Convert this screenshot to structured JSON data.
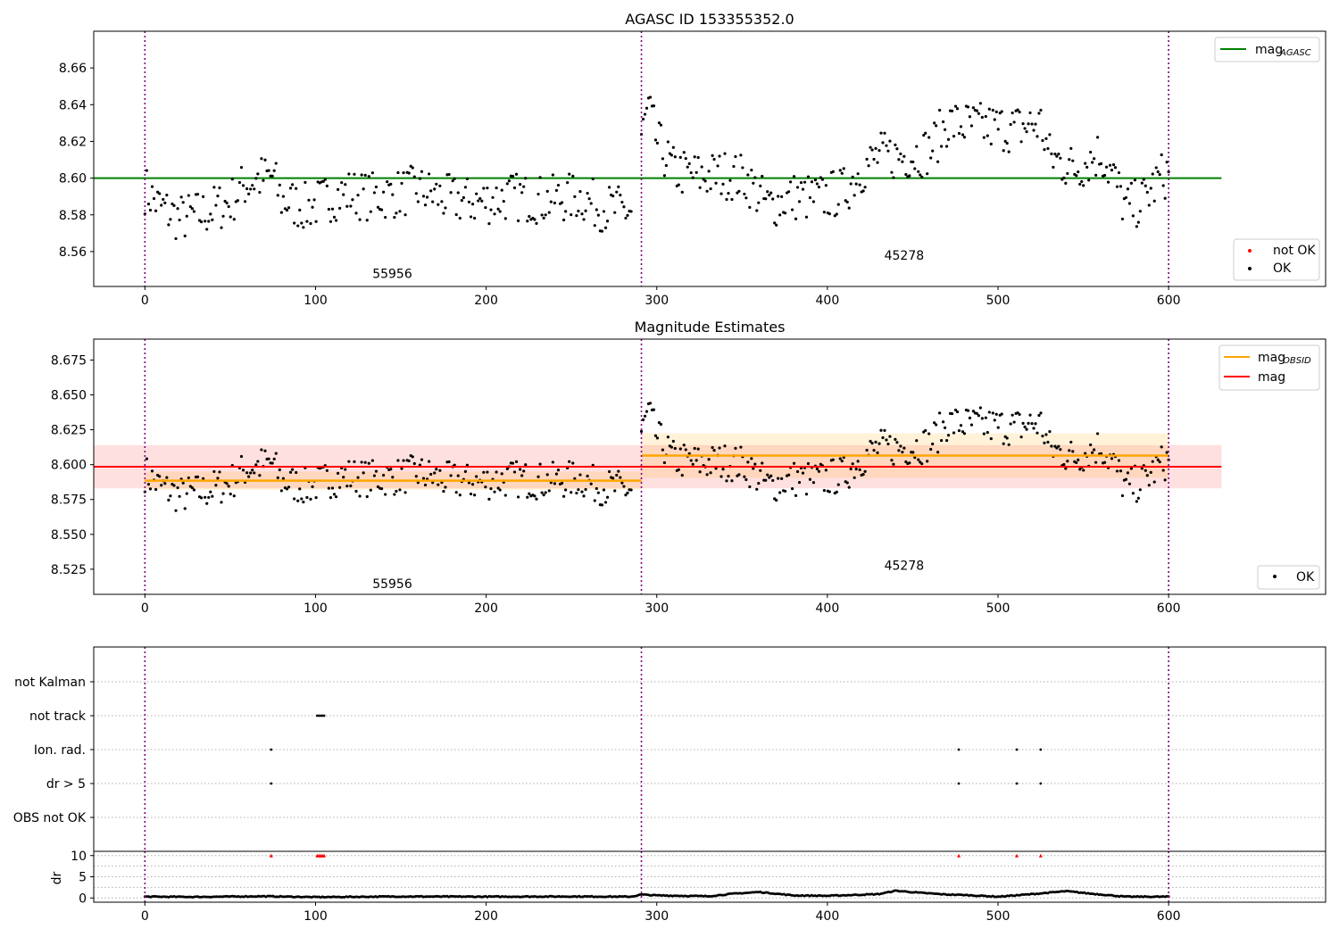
{
  "chart_data": [
    {
      "id": "agasc",
      "type": "scatter",
      "title": "AGASC ID 153355352.0",
      "xlim": [
        -30,
        692
      ],
      "ylim": [
        8.541,
        8.68
      ],
      "xticks": [
        0,
        100,
        200,
        300,
        400,
        500,
        600
      ],
      "yticks": [
        8.56,
        8.58,
        8.6,
        8.62,
        8.64,
        8.66
      ],
      "ytick_decimals": 2,
      "obsid_boundaries": [
        0,
        291,
        600
      ],
      "obsid_labels": [
        {
          "text": "55956",
          "x": 145,
          "y": 8.5455
        },
        {
          "text": "45278",
          "x": 445,
          "y": 8.5555
        }
      ],
      "hlines": [
        {
          "label_main": "mag",
          "label_sub": "AGASC",
          "y": 8.6,
          "x_range": [
            -30,
            631
          ],
          "color": "#008000"
        }
      ],
      "legend_top": [
        {
          "label_main": "mag",
          "label_sub": "AGASC",
          "color": "#008000"
        }
      ],
      "legend_bottom": [
        {
          "label": "not OK",
          "color": "#ff0000"
        },
        {
          "label": "OK",
          "color": "#000000"
        }
      ],
      "legend_top_placement": "upper-right",
      "legend_bottom_placement": "lower-right",
      "series_ref": "mag_points"
    },
    {
      "id": "estimates",
      "type": "scatter",
      "title": "Magnitude Estimates",
      "xlim": [
        -30,
        692
      ],
      "ylim": [
        8.507,
        8.69
      ],
      "xticks": [
        0,
        100,
        200,
        300,
        400,
        500,
        600
      ],
      "yticks": [
        8.525,
        8.55,
        8.575,
        8.6,
        8.625,
        8.65,
        8.675
      ],
      "ytick_decimals": 3,
      "obsid_boundaries": [
        0,
        291,
        600
      ],
      "obsid_labels": [
        {
          "text": "55956",
          "x": 145,
          "y": 8.5115
        },
        {
          "text": "45278",
          "x": 445,
          "y": 8.5245
        }
      ],
      "bands": [
        {
          "name": "mag",
          "y": 8.5985,
          "low": 8.583,
          "high": 8.614,
          "x_range": [
            -30,
            631
          ],
          "color": "#ff0000"
        },
        {
          "name": "obsid-55956",
          "y": 8.5885,
          "low": 8.582,
          "high": 8.595,
          "x_range": [
            0,
            291
          ],
          "color": "#ffa500"
        },
        {
          "name": "obsid-45278",
          "y": 8.6065,
          "low": 8.5905,
          "high": 8.6225,
          "x_range": [
            291,
            600
          ],
          "color": "#ffa500"
        }
      ],
      "legend_top": [
        {
          "label_main": "mag",
          "label_sub": "OBSID",
          "color": "#ffa500"
        },
        {
          "label_main": "mag",
          "label_sub": "",
          "color": "#ff0000"
        }
      ],
      "legend_bottom": [
        {
          "label": "OK",
          "color": "#000000"
        }
      ],
      "legend_top_placement": "upper-right",
      "legend_bottom_placement": "lower-right",
      "series_ref": "mag_points"
    },
    {
      "id": "flags",
      "type": "scatter",
      "title": "",
      "xlim": [
        -30,
        692
      ],
      "categories": [
        "OBS not OK",
        "dr > 5",
        "Ion. rad.",
        "not track",
        "not Kalman"
      ],
      "obsid_boundaries": [
        0,
        291,
        600
      ],
      "points": [
        {
          "category": "not track",
          "x": [
            101,
            102,
            103,
            104,
            105
          ]
        },
        {
          "category": "Ion. rad.",
          "x": [
            74,
            477,
            511,
            525
          ]
        },
        {
          "category": "dr > 5",
          "x": [
            74,
            477,
            511,
            525
          ]
        }
      ]
    },
    {
      "id": "dr",
      "type": "scatter",
      "title": "",
      "ylabel": "dr",
      "xlim": [
        -30,
        692
      ],
      "ylim": [
        -1,
        11
      ],
      "xticks": [
        0,
        100,
        200,
        300,
        400,
        500,
        600
      ],
      "yticks": [
        0,
        5,
        10
      ],
      "obsid_boundaries": [
        0,
        291,
        600
      ],
      "clipped_marks": {
        "y": 10,
        "x": [
          74,
          101,
          102,
          103,
          104,
          105,
          477,
          511,
          525
        ],
        "color": "#ff0000"
      },
      "series_ref": "dr_points"
    }
  ],
  "mag_points": {
    "segments": [
      {
        "x_range": [
          0,
          285
        ],
        "knots": [
          [
            0,
            8.594
          ],
          [
            8,
            8.585
          ],
          [
            20,
            8.578
          ],
          [
            35,
            8.581
          ],
          [
            50,
            8.587
          ],
          [
            58,
            8.596
          ],
          [
            65,
            8.599
          ],
          [
            75,
            8.601
          ],
          [
            80,
            8.588
          ],
          [
            95,
            8.584
          ],
          [
            110,
            8.59
          ],
          [
            120,
            8.592
          ],
          [
            130,
            8.59
          ],
          [
            145,
            8.591
          ],
          [
            160,
            8.594
          ],
          [
            175,
            8.589
          ],
          [
            195,
            8.587
          ],
          [
            215,
            8.59
          ],
          [
            235,
            8.588
          ],
          [
            255,
            8.59
          ],
          [
            265,
            8.585
          ],
          [
            275,
            8.583
          ],
          [
            285,
            8.582
          ]
        ],
        "spread": 0.0135
      },
      {
        "x_range": [
          291,
          600
        ],
        "knots": [
          [
            291,
            8.622
          ],
          [
            295,
            8.638
          ],
          [
            300,
            8.62
          ],
          [
            310,
            8.604
          ],
          [
            325,
            8.601
          ],
          [
            340,
            8.602
          ],
          [
            352,
            8.6
          ],
          [
            365,
            8.585
          ],
          [
            380,
            8.59
          ],
          [
            395,
            8.589
          ],
          [
            410,
            8.593
          ],
          [
            418,
            8.603
          ],
          [
            430,
            8.612
          ],
          [
            445,
            8.612
          ],
          [
            460,
            8.615
          ],
          [
            470,
            8.63
          ],
          [
            490,
            8.628
          ],
          [
            510,
            8.627
          ],
          [
            525,
            8.63
          ],
          [
            530,
            8.612
          ],
          [
            545,
            8.605
          ],
          [
            560,
            8.614
          ],
          [
            568,
            8.6
          ],
          [
            575,
            8.583
          ],
          [
            585,
            8.588
          ],
          [
            595,
            8.6
          ],
          [
            600,
            8.603
          ]
        ],
        "spread": 0.0135
      }
    ],
    "count_per_segment": [
      268,
      298
    ],
    "color": "#000000"
  },
  "dr_points": {
    "x_range": [
      0,
      600
    ],
    "knots": [
      [
        0,
        0.3
      ],
      [
        30,
        0.25
      ],
      [
        70,
        0.4
      ],
      [
        100,
        0.2
      ],
      [
        150,
        0.35
      ],
      [
        200,
        0.3
      ],
      [
        250,
        0.35
      ],
      [
        285,
        0.3
      ],
      [
        291,
        0.8
      ],
      [
        300,
        0.6
      ],
      [
        330,
        0.4
      ],
      [
        345,
        1.0
      ],
      [
        360,
        1.4
      ],
      [
        380,
        0.6
      ],
      [
        400,
        0.5
      ],
      [
        430,
        0.9
      ],
      [
        440,
        1.7
      ],
      [
        455,
        1.2
      ],
      [
        470,
        0.8
      ],
      [
        480,
        0.7
      ],
      [
        500,
        0.3
      ],
      [
        520,
        0.9
      ],
      [
        540,
        1.6
      ],
      [
        555,
        1.0
      ],
      [
        575,
        0.3
      ],
      [
        600,
        0.3
      ]
    ],
    "count": 560,
    "color": "#000000"
  }
}
